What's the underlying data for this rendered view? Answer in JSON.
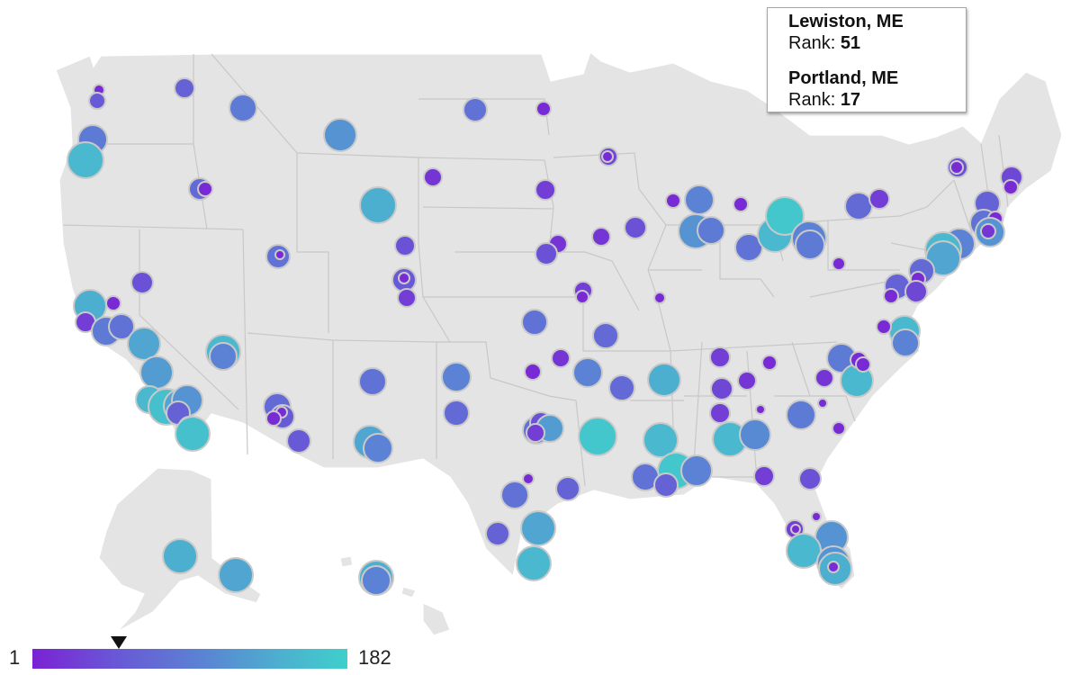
{
  "tooltip": {
    "entries": [
      {
        "city": "Lewiston, ME",
        "rank_label": "Rank:",
        "rank_value": "51"
      },
      {
        "city": "Portland, ME",
        "rank_label": "Rank:",
        "rank_value": "17"
      }
    ]
  },
  "legend": {
    "min": "1",
    "max": "182",
    "selected_rank": 51,
    "color_low": "#7b22d4",
    "color_high": "#3fcfcc"
  },
  "colors": {
    "land": "#e4e4e4",
    "state_border": "#c8c8c8",
    "bubble_stroke": "#c9c9c9"
  }
}
